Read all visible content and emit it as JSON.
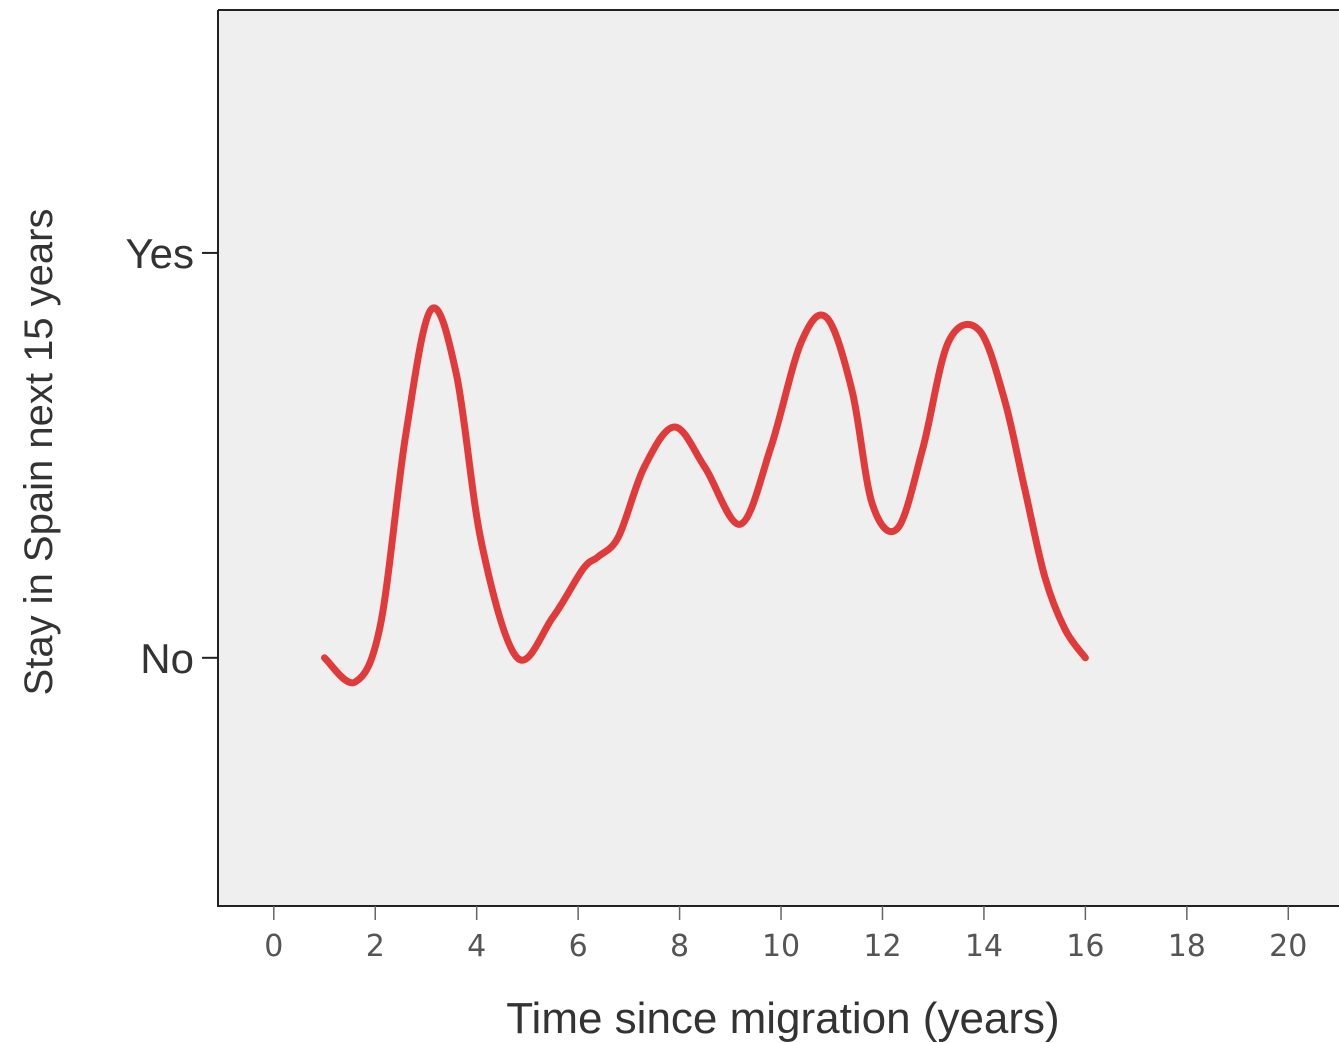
{
  "chart_data": {
    "type": "line",
    "title": "",
    "xlabel": "Time since migration (years)",
    "ylabel": "Stay in Spain next 15 years",
    "xlim": [
      -1.1,
      21.0
    ],
    "ylim": [
      -0.613,
      1.6
    ],
    "x_ticks": [
      0,
      2,
      4,
      6,
      8,
      10,
      12,
      14,
      16,
      18,
      20
    ],
    "y_ticks": [
      {
        "value": 0,
        "label": "No"
      },
      {
        "value": 1,
        "label": "Yes"
      }
    ],
    "grid": false,
    "plot_background": "#efefef",
    "series": [
      {
        "color": "#e03a3a",
        "x": [
          1.0,
          1.6,
          2.1,
          2.6,
          3.1,
          3.6,
          4.1,
          4.8,
          5.5,
          6.1,
          6.4,
          6.8,
          7.3,
          7.9,
          8.5,
          9.2,
          9.8,
          10.4,
          10.9,
          11.4,
          11.8,
          12.3,
          12.8,
          13.3,
          13.9,
          14.4,
          14.8,
          15.2,
          15.6,
          16.0
        ],
        "y": [
          0.0,
          -0.06,
          0.08,
          0.55,
          0.86,
          0.7,
          0.28,
          0.0,
          0.1,
          0.22,
          0.25,
          0.3,
          0.47,
          0.57,
          0.47,
          0.33,
          0.52,
          0.78,
          0.84,
          0.66,
          0.38,
          0.32,
          0.52,
          0.78,
          0.81,
          0.64,
          0.42,
          0.2,
          0.07,
          0.0
        ]
      }
    ]
  }
}
